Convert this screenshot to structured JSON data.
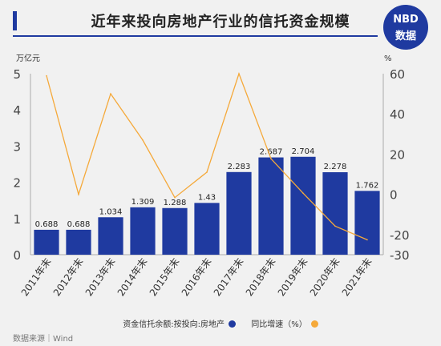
{
  "header": {
    "title": "近年来投向房地产行业的信托资金规模",
    "logo_line1": "NBD",
    "logo_line2": "数据"
  },
  "source_label": "数据来源｜Wind",
  "colors": {
    "bar": "#1f3aa0",
    "line": "#f5a93a",
    "axis": "#aaaaaa"
  },
  "chart_data": {
    "type": "bar",
    "categories": [
      "2011年末",
      "2012年末",
      "2013年末",
      "2014年末",
      "2015年末",
      "2016年末",
      "2017年末",
      "2018年末",
      "2019年末",
      "2020年末",
      "2021年末"
    ],
    "series": [
      {
        "name": "资金信托余额:按投向:房地产",
        "type": "bar",
        "axis": "left",
        "values": [
          0.688,
          0.688,
          1.034,
          1.309,
          1.288,
          1.43,
          2.283,
          2.687,
          2.704,
          2.278,
          1.762
        ],
        "labels": [
          "0.688",
          "0.688",
          "1.034",
          "1.309",
          "1.288",
          "1.43",
          "2.283",
          "2.687",
          "2.704",
          "2.278",
          "1.762"
        ]
      },
      {
        "name": "同比增速（%）",
        "type": "line",
        "axis": "right",
        "values": [
          59,
          0,
          50,
          27,
          -1.6,
          11,
          60,
          17.7,
          0.6,
          -15.8,
          -22.6
        ]
      }
    ],
    "left_axis": {
      "unit": "万亿元",
      "min": 0,
      "max": 5,
      "ticks": [
        "0",
        "1",
        "2",
        "3",
        "4",
        "5"
      ]
    },
    "right_axis": {
      "unit": "%",
      "min": -30,
      "max": 60,
      "ticks": [
        "-30",
        "-20",
        "0",
        "20",
        "40",
        "60"
      ]
    },
    "grid": false,
    "legend_position": "bottom"
  }
}
